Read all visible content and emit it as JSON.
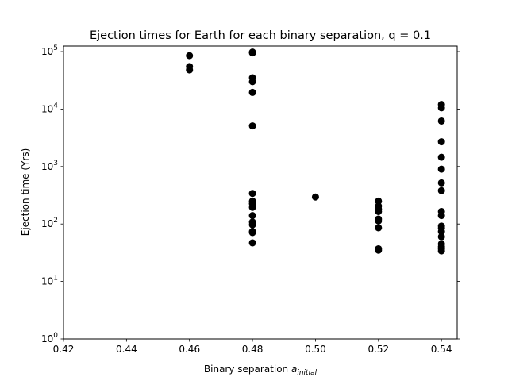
{
  "chart_data": {
    "type": "scatter",
    "title": "Ejection times for Earth for each binary separation, q = 0.1",
    "xlabel_main": "Binary separation ",
    "xlabel_var": "a",
    "xlabel_sub": "initial",
    "ylabel": "Ejection time (Yrs)",
    "xlim": [
      0.42,
      0.545
    ],
    "ylim": [
      1,
      125000
    ],
    "yscale": "log",
    "x_ticks": [
      "0.42",
      "0.44",
      "0.46",
      "0.48",
      "0.50",
      "0.52",
      "0.54"
    ],
    "y_tick_exponents": [
      "0",
      "1",
      "2",
      "3",
      "4",
      "5"
    ],
    "y_tick_base": "10",
    "marker_color": "#000000",
    "grid": false,
    "points": [
      {
        "x": 0.46,
        "y": 85000
      },
      {
        "x": 0.46,
        "y": 55000
      },
      {
        "x": 0.46,
        "y": 48000
      },
      {
        "x": 0.48,
        "y": 98000
      },
      {
        "x": 0.48,
        "y": 95000
      },
      {
        "x": 0.48,
        "y": 35000
      },
      {
        "x": 0.48,
        "y": 30000
      },
      {
        "x": 0.48,
        "y": 19500
      },
      {
        "x": 0.48,
        "y": 5100
      },
      {
        "x": 0.48,
        "y": 340
      },
      {
        "x": 0.48,
        "y": 250
      },
      {
        "x": 0.48,
        "y": 225
      },
      {
        "x": 0.48,
        "y": 195
      },
      {
        "x": 0.48,
        "y": 140
      },
      {
        "x": 0.48,
        "y": 108
      },
      {
        "x": 0.48,
        "y": 97
      },
      {
        "x": 0.48,
        "y": 74
      },
      {
        "x": 0.48,
        "y": 71
      },
      {
        "x": 0.48,
        "y": 47
      },
      {
        "x": 0.5,
        "y": 295
      },
      {
        "x": 0.52,
        "y": 250
      },
      {
        "x": 0.52,
        "y": 205
      },
      {
        "x": 0.52,
        "y": 180
      },
      {
        "x": 0.52,
        "y": 165
      },
      {
        "x": 0.52,
        "y": 122
      },
      {
        "x": 0.52,
        "y": 113
      },
      {
        "x": 0.52,
        "y": 86
      },
      {
        "x": 0.52,
        "y": 37
      },
      {
        "x": 0.52,
        "y": 35
      },
      {
        "x": 0.54,
        "y": 12000
      },
      {
        "x": 0.54,
        "y": 10500
      },
      {
        "x": 0.54,
        "y": 6200
      },
      {
        "x": 0.54,
        "y": 2700
      },
      {
        "x": 0.54,
        "y": 1450
      },
      {
        "x": 0.54,
        "y": 900
      },
      {
        "x": 0.54,
        "y": 520
      },
      {
        "x": 0.54,
        "y": 380
      },
      {
        "x": 0.54,
        "y": 165
      },
      {
        "x": 0.54,
        "y": 140
      },
      {
        "x": 0.54,
        "y": 92
      },
      {
        "x": 0.54,
        "y": 85
      },
      {
        "x": 0.54,
        "y": 74
      },
      {
        "x": 0.54,
        "y": 60
      },
      {
        "x": 0.54,
        "y": 45
      },
      {
        "x": 0.54,
        "y": 40
      },
      {
        "x": 0.54,
        "y": 37
      },
      {
        "x": 0.54,
        "y": 34
      }
    ]
  }
}
